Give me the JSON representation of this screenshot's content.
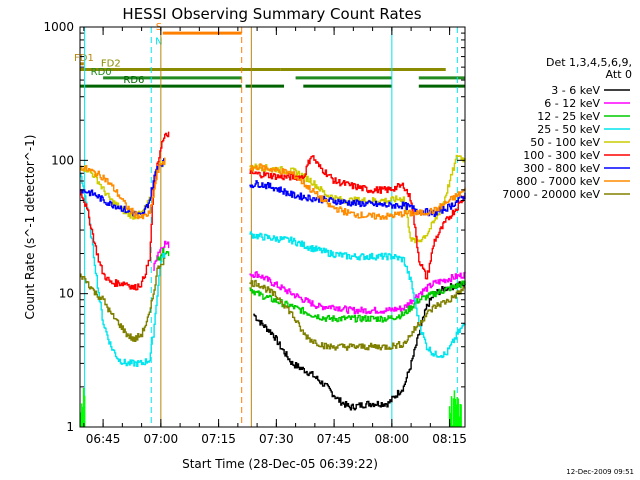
{
  "chart_data": {
    "type": "line",
    "title": "HESSI Observing Summary Count Rates",
    "xlabel": "Start Time (28-Dec-05 06:39:22)",
    "ylabel": "Count Rate (s^-1 detector^-1)",
    "y_scale": "log",
    "ylim": [
      1,
      1000
    ],
    "xlim_minutes_after_0639": [
      0,
      100
    ],
    "x_ticks": [
      {
        "label": "06:45",
        "minute": 6
      },
      {
        "label": "07:00",
        "minute": 21
      },
      {
        "label": "07:15",
        "minute": 36
      },
      {
        "label": "07:30",
        "minute": 51
      },
      {
        "label": "07:45",
        "minute": 66
      },
      {
        "label": "08:00",
        "minute": 81
      },
      {
        "label": "08:15",
        "minute": 96
      }
    ],
    "y_ticks": [
      {
        "label": "1",
        "value": 1
      },
      {
        "label": "10",
        "value": 10
      },
      {
        "label": "100",
        "value": 100
      },
      {
        "label": "1000",
        "value": 1000
      }
    ],
    "legend": {
      "header": [
        "Det 1,3,4,5,6,9,",
        "Att 0"
      ],
      "placement": "right"
    },
    "footer_stamp": "12-Dec-2009 09:51",
    "flags": [
      {
        "label": "S",
        "color": "#ff7f00",
        "value": 900,
        "segments": [
          [
            21.5,
            42
          ]
        ]
      },
      {
        "label": "N",
        "color": "#00e5ee",
        "label_only": true,
        "value": 700
      },
      {
        "label": "FD1",
        "color": "#b8860b",
        "value": 530,
        "segments": [
          [
            0,
            1
          ]
        ],
        "label_offset": -6
      },
      {
        "label": "FD2",
        "color": "#8b8b00",
        "value": 480,
        "segments": [
          [
            0,
            52
          ],
          [
            52,
            95
          ]
        ]
      },
      {
        "label": "RD0",
        "color": "#228b22",
        "value": 415,
        "segments": [
          [
            6,
            42
          ],
          [
            56,
            81
          ],
          [
            88,
            100
          ]
        ]
      },
      {
        "label": "RD6",
        "color": "#006400",
        "value": 360,
        "segments": [
          [
            0,
            42
          ],
          [
            43,
            53
          ],
          [
            58,
            81
          ],
          [
            88,
            100
          ]
        ]
      }
    ],
    "vertical_lines": [
      {
        "minute": 1.2,
        "color": "#00e5ee",
        "style": "solid"
      },
      {
        "minute": 18.5,
        "color": "#00e5ee",
        "style": "dashed"
      },
      {
        "minute": 21,
        "color": "#b8860b",
        "style": "solid"
      },
      {
        "minute": 42,
        "color": "#ff7f00",
        "style": "dashed"
      },
      {
        "minute": 44.5,
        "color": "#b8860b",
        "style": "solid"
      },
      {
        "minute": 81,
        "color": "#00e5ee",
        "style": "solid"
      },
      {
        "minute": 98,
        "color": "#00e5ee",
        "style": "dashed"
      }
    ],
    "series": [
      {
        "name": "3 - 6 keV",
        "color": "#000000",
        "x": [
          0,
          44,
          45,
          47,
          50,
          52,
          55,
          60,
          64,
          67,
          70,
          75,
          80,
          84,
          86,
          88,
          90,
          92,
          95,
          100
        ],
        "y": [
          null,
          null,
          7,
          6,
          5,
          4,
          3,
          2.5,
          2,
          1.6,
          1.4,
          1.5,
          1.5,
          2,
          3,
          5,
          8,
          10,
          11,
          12
        ]
      },
      {
        "name": "6 - 12 keV",
        "color": "#ff00ff",
        "x": [
          0,
          19,
          20,
          21,
          22,
          23,
          42,
          44,
          46,
          48,
          50,
          55,
          58,
          62,
          66,
          70,
          75,
          80,
          84,
          88,
          92,
          96,
          100
        ],
        "y": [
          null,
          15,
          20,
          22,
          24,
          23,
          null,
          14,
          14,
          13,
          12,
          10,
          9,
          8,
          8,
          7.5,
          7.5,
          7.5,
          7.8,
          10,
          12,
          13,
          14
        ]
      },
      {
        "name": "12 - 25 keV",
        "color": "#00cc00",
        "x": [
          0,
          20,
          21,
          22,
          23,
          42,
          44,
          46,
          50,
          55,
          60,
          64,
          70,
          75,
          80,
          84,
          88,
          92,
          96,
          100
        ],
        "y": [
          null,
          18,
          20,
          21,
          20,
          null,
          11,
          10,
          9,
          8,
          7,
          6.5,
          6.5,
          6.5,
          6.5,
          7,
          9,
          10,
          11,
          12
        ]
      },
      {
        "name": "25 - 50 keV",
        "color": "#00e5ee",
        "x": [
          0,
          1,
          2,
          3,
          4,
          5,
          6,
          8,
          10,
          12,
          14,
          16,
          18,
          19,
          20,
          21,
          22,
          42,
          44,
          46,
          50,
          55,
          60,
          65,
          70,
          75,
          80,
          81,
          84,
          86,
          88,
          90,
          92,
          95,
          98,
          100
        ],
        "y": [
          80,
          60,
          40,
          25,
          15,
          9,
          6,
          4,
          3.2,
          3,
          3,
          3,
          3.2,
          5,
          10,
          18,
          20,
          null,
          28,
          27,
          26,
          25,
          22,
          20,
          19,
          19,
          19,
          19,
          18,
          12,
          6,
          4,
          3.5,
          3.5,
          5,
          6
        ]
      },
      {
        "name": "50 - 100 keV",
        "color": "#cccc00",
        "x": [
          0,
          2,
          4,
          6,
          8,
          10,
          12,
          14,
          16,
          18,
          19,
          20,
          21,
          22,
          42,
          44,
          48,
          52,
          56,
          60,
          64,
          68,
          72,
          76,
          80,
          84,
          86,
          88,
          90,
          92,
          94,
          96,
          98,
          100
        ],
        "y": [
          90,
          85,
          75,
          60,
          50,
          45,
          40,
          38,
          40,
          50,
          70,
          90,
          95,
          95,
          null,
          90,
          88,
          85,
          82,
          70,
          55,
          50,
          50,
          50,
          50,
          52,
          25,
          25,
          28,
          35,
          45,
          70,
          110,
          100
        ]
      },
      {
        "name": "100 - 300 keV",
        "color": "#ff0000",
        "x": [
          0,
          1,
          2,
          3,
          4,
          5,
          6,
          8,
          10,
          12,
          14,
          16,
          18,
          19,
          20,
          21,
          22,
          23,
          42,
          44,
          48,
          52,
          55,
          58,
          60,
          62,
          64,
          66,
          70,
          75,
          80,
          84,
          86,
          88,
          90,
          92,
          95,
          98,
          100
        ],
        "y": [
          60,
          50,
          40,
          30,
          22,
          17,
          14,
          12,
          12,
          12,
          11,
          12,
          18,
          60,
          90,
          130,
          150,
          160,
          null,
          80,
          78,
          75,
          75,
          75,
          110,
          90,
          80,
          70,
          65,
          60,
          60,
          65,
          50,
          18,
          13,
          25,
          35,
          45,
          55
        ]
      },
      {
        "name": "300 - 800 keV",
        "color": "#0000ff",
        "x": [
          0,
          2,
          4,
          6,
          8,
          10,
          12,
          14,
          16,
          18,
          19,
          20,
          21,
          22,
          42,
          44,
          46,
          48,
          50,
          52,
          55,
          60,
          65,
          70,
          75,
          80,
          84,
          88,
          92,
          96,
          100
        ],
        "y": [
          60,
          58,
          55,
          50,
          47,
          45,
          42,
          40,
          38,
          50,
          70,
          90,
          95,
          98,
          null,
          65,
          67,
          65,
          63,
          60,
          55,
          52,
          50,
          48,
          47,
          46,
          46,
          42,
          40,
          45,
          55
        ]
      },
      {
        "name": "800 - 7000 keV",
        "color": "#ff8c00",
        "x": [
          0,
          2,
          4,
          6,
          8,
          10,
          12,
          14,
          16,
          18,
          19,
          20,
          21,
          22,
          42,
          44,
          46,
          48,
          50,
          52,
          55,
          60,
          65,
          70,
          75,
          80,
          84,
          88,
          92,
          96,
          100
        ],
        "y": [
          90,
          85,
          80,
          75,
          65,
          55,
          45,
          40,
          37,
          40,
          55,
          80,
          95,
          100,
          null,
          85,
          90,
          88,
          85,
          83,
          80,
          60,
          45,
          40,
          38,
          38,
          40,
          40,
          42,
          50,
          60
        ]
      },
      {
        "name": "7000 - 20000 keV",
        "color": "#808000",
        "x": [
          0,
          2,
          4,
          6,
          8,
          10,
          12,
          14,
          16,
          18,
          19,
          20,
          21,
          22,
          42,
          44,
          46,
          48,
          50,
          52,
          55,
          58,
          60,
          64,
          68,
          72,
          76,
          80,
          84,
          86,
          88,
          90,
          92,
          94,
          96,
          98,
          100
        ],
        "y": [
          14,
          12,
          10,
          9,
          7,
          6,
          5,
          4.5,
          5,
          7,
          10,
          15,
          17,
          18,
          null,
          12,
          12,
          11,
          10,
          9,
          7,
          5,
          4.5,
          4,
          4,
          4,
          4,
          4,
          4.2,
          5,
          6,
          7,
          8,
          8.5,
          9,
          10,
          11
        ]
      }
    ],
    "annotations": [
      {
        "text": "saa-like green bursts near y=1 at 0-1 min and 95-99 min"
      }
    ]
  }
}
